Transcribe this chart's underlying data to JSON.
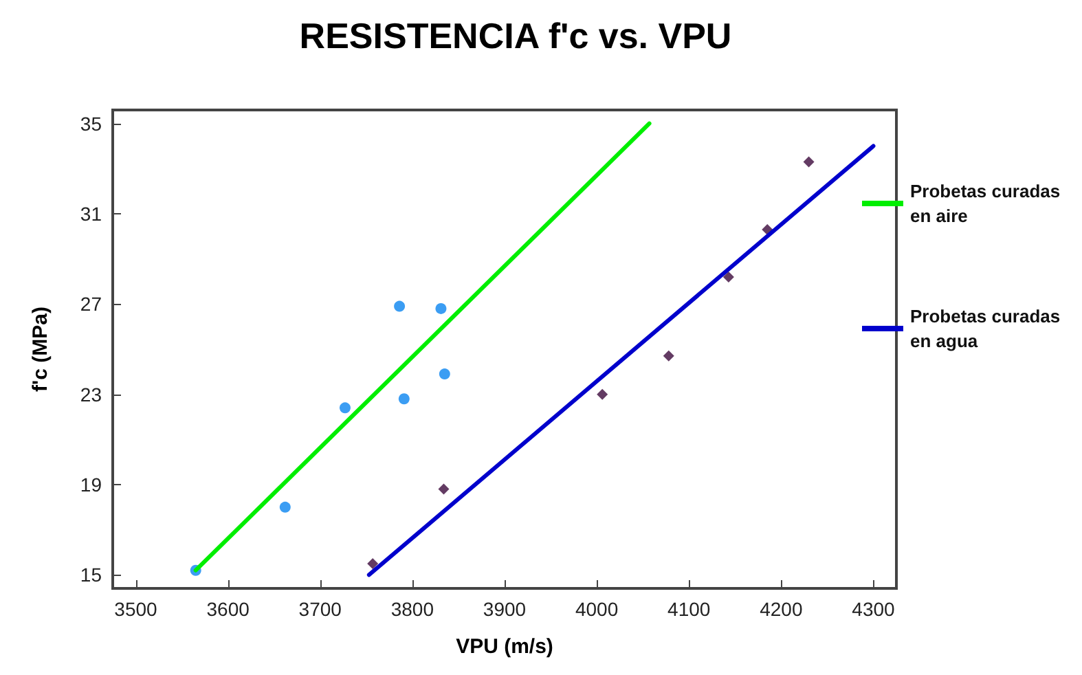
{
  "chart_data": {
    "type": "scatter",
    "title": "RESISTENCIA f'c vs. VPU",
    "xlabel": "VPU (m/s)",
    "ylabel": "f'c (MPa)",
    "xlim": [
      3475,
      4325
    ],
    "ylim": [
      14.4,
      35.6
    ],
    "xticks": [
      3500,
      3600,
      3700,
      3800,
      3900,
      4000,
      4100,
      4200,
      4300
    ],
    "yticks": [
      15,
      19,
      23,
      27,
      31,
      35
    ],
    "grid": false,
    "legend": "right",
    "series": [
      {
        "marker": "circle",
        "color": "#0a84f0",
        "x": [
          3565,
          3662,
          3727,
          3786,
          3791,
          3831,
          3835
        ],
        "values": [
          15.2,
          18.0,
          22.4,
          26.9,
          22.8,
          26.8,
          23.9
        ]
      },
      {
        "marker": "diamond",
        "color": "#3c0a3c",
        "x": [
          3757,
          3834,
          4006,
          4078,
          4143,
          4185,
          4230
        ],
        "values": [
          15.5,
          18.8,
          23.0,
          24.7,
          28.2,
          30.3,
          33.3
        ]
      },
      {
        "type": "line",
        "name": "Probetas curadas en aire",
        "color": "#00ee00",
        "marker": "none",
        "x": [
          3565,
          4057
        ],
        "values": [
          15.2,
          35.0
        ]
      },
      {
        "type": "line",
        "name": "Probetas curadas en agua",
        "color": "#0000cc",
        "marker": "none",
        "x": [
          3753,
          4300
        ],
        "values": [
          15.0,
          34.0
        ]
      }
    ]
  }
}
